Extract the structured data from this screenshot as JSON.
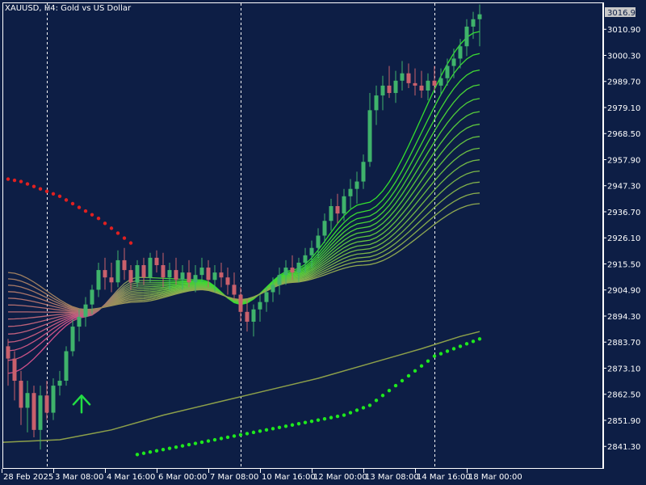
{
  "window": {
    "title": "XAUUSD, H4:  Gold vs US Dollar",
    "current_price": "3016.94"
  },
  "colors": {
    "background": "#0d1e45",
    "axis": "#ffffff",
    "grid_line": "#ffffff",
    "candle_up": "#3fb36b",
    "candle_down": "#c9606c",
    "sar_down": "#e02020",
    "sar_up": "#1ee81e",
    "arrow": "#22dd44",
    "slow_ma": "#8da04a",
    "price_tag_bg": "#c8c8c8"
  },
  "icons": {
    "signal_arrow": "up-arrow-icon"
  },
  "chart_data": {
    "type": "candlestick",
    "symbol": "XAUUSD",
    "timeframe": "H4",
    "y_ticks": [
      3010.9,
      3000.3,
      2989.7,
      2979.1,
      2968.5,
      2957.9,
      2947.3,
      2936.7,
      2926.1,
      2915.5,
      2904.9,
      2894.3,
      2883.7,
      2873.1,
      2862.5,
      2851.9,
      2841.3
    ],
    "y_tick_labels": [
      "3010.90",
      "3000.30",
      "2989.70",
      "2979.10",
      "2968.50",
      "2957.90",
      "2947.30",
      "2936.70",
      "2926.10",
      "2915.50",
      "2904.90",
      "2894.30",
      "2883.70",
      "2873.10",
      "2862.50",
      "2851.90",
      "2841.30"
    ],
    "ylim": [
      2832.5,
      3021.5
    ],
    "x_labels": [
      "28 Feb 2025",
      "3 Mar 08:00",
      "4 Mar 16:00",
      "6 Mar 00:00",
      "7 Mar 08:00",
      "10 Mar 16:00",
      "12 Mar 00:00",
      "13 Mar 08:00",
      "14 Mar 16:00",
      "18 Mar 00:00"
    ],
    "x_label_bars": [
      0,
      8,
      16,
      24,
      32,
      40,
      48,
      56,
      64,
      72
    ],
    "period_separator_bars": [
      6,
      36,
      66
    ],
    "bar_count": 74,
    "candles": [
      [
        2882,
        2885,
        2866,
        2877
      ],
      [
        2877,
        2880,
        2860,
        2868
      ],
      [
        2868,
        2872,
        2850,
        2857
      ],
      [
        2857,
        2868,
        2847,
        2863
      ],
      [
        2863,
        2866,
        2845,
        2848
      ],
      [
        2848,
        2866,
        2840,
        2862
      ],
      [
        2862,
        2868,
        2852,
        2855
      ],
      [
        2855,
        2869,
        2852,
        2866
      ],
      [
        2866,
        2872,
        2862,
        2868
      ],
      [
        2868,
        2882,
        2866,
        2880
      ],
      [
        2880,
        2893,
        2878,
        2890
      ],
      [
        2890,
        2897,
        2884,
        2894
      ],
      [
        2894,
        2902,
        2890,
        2899
      ],
      [
        2899,
        2907,
        2895,
        2905
      ],
      [
        2905,
        2916,
        2902,
        2913
      ],
      [
        2913,
        2918,
        2905,
        2910
      ],
      [
        2910,
        2916,
        2904,
        2908
      ],
      [
        2908,
        2921,
        2906,
        2917
      ],
      [
        2917,
        2922,
        2909,
        2913
      ],
      [
        2913,
        2915,
        2905,
        2908
      ],
      [
        2908,
        2917,
        2906,
        2915
      ],
      [
        2915,
        2918,
        2907,
        2910
      ],
      [
        2910,
        2920,
        2908,
        2918
      ],
      [
        2918,
        2921,
        2912,
        2915
      ],
      [
        2915,
        2920,
        2906,
        2910
      ],
      [
        2910,
        2916,
        2905,
        2913
      ],
      [
        2913,
        2918,
        2907,
        2909
      ],
      [
        2909,
        2915,
        2905,
        2912
      ],
      [
        2912,
        2917,
        2906,
        2908
      ],
      [
        2908,
        2915,
        2904,
        2911
      ],
      [
        2911,
        2918,
        2908,
        2914
      ],
      [
        2914,
        2917,
        2906,
        2909
      ],
      [
        2909,
        2915,
        2904,
        2912
      ],
      [
        2912,
        2916,
        2906,
        2910
      ],
      [
        2910,
        2914,
        2903,
        2907
      ],
      [
        2907,
        2912,
        2901,
        2903
      ],
      [
        2903,
        2906,
        2892,
        2896
      ],
      [
        2896,
        2901,
        2888,
        2892
      ],
      [
        2892,
        2899,
        2886,
        2897
      ],
      [
        2897,
        2903,
        2892,
        2900
      ],
      [
        2900,
        2906,
        2896,
        2904
      ],
      [
        2904,
        2910,
        2900,
        2907
      ],
      [
        2907,
        2914,
        2903,
        2911
      ],
      [
        2911,
        2917,
        2907,
        2914
      ],
      [
        2914,
        2919,
        2909,
        2912
      ],
      [
        2912,
        2918,
        2908,
        2916
      ],
      [
        2916,
        2922,
        2912,
        2919
      ],
      [
        2919,
        2925,
        2914,
        2922
      ],
      [
        2922,
        2930,
        2918,
        2927
      ],
      [
        2927,
        2936,
        2924,
        2933
      ],
      [
        2933,
        2942,
        2929,
        2939
      ],
      [
        2939,
        2944,
        2932,
        2936
      ],
      [
        2936,
        2946,
        2933,
        2943
      ],
      [
        2943,
        2950,
        2938,
        2946
      ],
      [
        2946,
        2953,
        2940,
        2949
      ],
      [
        2949,
        2960,
        2946,
        2957
      ],
      [
        2957,
        2985,
        2955,
        2978
      ],
      [
        2978,
        2988,
        2972,
        2984
      ],
      [
        2984,
        2992,
        2978,
        2988
      ],
      [
        2988,
        2996,
        2983,
        2985
      ],
      [
        2985,
        2994,
        2981,
        2990
      ],
      [
        2990,
        2998,
        2986,
        2993
      ],
      [
        2993,
        2997,
        2987,
        2989
      ],
      [
        2989,
        2995,
        2984,
        2988
      ],
      [
        2988,
        2994,
        2983,
        2986
      ],
      [
        2986,
        2993,
        2982,
        2990
      ],
      [
        2990,
        2996,
        2986,
        2988
      ],
      [
        2988,
        2995,
        2984,
        2991
      ],
      [
        2991,
        2999,
        2988,
        2996
      ],
      [
        2996,
        3003,
        2991,
        2999
      ],
      [
        2999,
        3007,
        2995,
        3004
      ],
      [
        3004,
        3015,
        3000,
        3012
      ],
      [
        3012,
        3018,
        3007,
        3015
      ],
      [
        3015,
        3021,
        3004,
        3017
      ]
    ],
    "sar_down": [
      [
        0,
        2950
      ],
      [
        1,
        2949.5
      ],
      [
        2,
        2949
      ],
      [
        3,
        2948
      ],
      [
        4,
        2947
      ],
      [
        5,
        2946
      ],
      [
        6,
        2945
      ],
      [
        7,
        2944
      ],
      [
        8,
        2943
      ],
      [
        9,
        2941.5
      ],
      [
        10,
        2940
      ],
      [
        11,
        2938.5
      ],
      [
        12,
        2937
      ],
      [
        13,
        2935.5
      ],
      [
        14,
        2934
      ],
      [
        15,
        2932
      ],
      [
        16,
        2930
      ],
      [
        17,
        2928
      ],
      [
        18,
        2926
      ],
      [
        19,
        2924
      ]
    ],
    "sar_up": [
      [
        20,
        2838
      ],
      [
        21,
        2838.5
      ],
      [
        22,
        2839
      ],
      [
        23,
        2839.5
      ],
      [
        24,
        2840
      ],
      [
        25,
        2840.5
      ],
      [
        26,
        2841
      ],
      [
        27,
        2841.5
      ],
      [
        28,
        2842
      ],
      [
        29,
        2842.5
      ],
      [
        30,
        2843
      ],
      [
        31,
        2843.5
      ],
      [
        32,
        2844
      ],
      [
        33,
        2844.5
      ],
      [
        34,
        2845
      ],
      [
        35,
        2845.5
      ],
      [
        36,
        2846
      ],
      [
        37,
        2846.5
      ],
      [
        38,
        2847
      ],
      [
        39,
        2847.5
      ],
      [
        40,
        2848
      ],
      [
        41,
        2848.5
      ],
      [
        42,
        2849
      ],
      [
        43,
        2849.5
      ],
      [
        44,
        2850
      ],
      [
        45,
        2850.5
      ],
      [
        46,
        2851
      ],
      [
        47,
        2851.5
      ],
      [
        48,
        2852
      ],
      [
        49,
        2852.5
      ],
      [
        50,
        2853
      ],
      [
        51,
        2853.5
      ],
      [
        52,
        2854
      ],
      [
        53,
        2855
      ],
      [
        54,
        2856
      ],
      [
        55,
        2857
      ],
      [
        56,
        2858
      ],
      [
        57,
        2860
      ],
      [
        58,
        2862
      ],
      [
        59,
        2864
      ],
      [
        60,
        2866
      ],
      [
        61,
        2868
      ],
      [
        62,
        2870
      ],
      [
        63,
        2872
      ],
      [
        64,
        2874
      ],
      [
        65,
        2876
      ],
      [
        66,
        2878
      ],
      [
        67,
        2879
      ],
      [
        68,
        2880
      ],
      [
        69,
        2881
      ],
      [
        70,
        2882
      ],
      [
        71,
        2883
      ],
      [
        72,
        2884
      ],
      [
        73,
        2885
      ]
    ],
    "slow_ma": [
      [
        0,
        2843
      ],
      [
        8,
        2844
      ],
      [
        16,
        2848
      ],
      [
        24,
        2854
      ],
      [
        32,
        2859
      ],
      [
        40,
        2864
      ],
      [
        48,
        2869
      ],
      [
        56,
        2875
      ],
      [
        64,
        2881
      ],
      [
        70,
        2886
      ],
      [
        73,
        2888
      ]
    ],
    "ma_ribbon": {
      "count": 14,
      "anchor_bars": [
        0,
        12,
        20,
        30,
        36,
        44,
        55,
        73
      ],
      "fast": [
        2871,
        2894,
        2910,
        2909,
        2899,
        2913,
        2940,
        3010
      ],
      "slow": [
        2912,
        2897,
        2900,
        2905,
        2901,
        2908,
        2915,
        2940
      ],
      "color_fast_early": "#d0508a",
      "color_slow_early": "#a08060",
      "color_fast_late": "#33e02e",
      "color_slow_late": "#8fa850"
    },
    "signals": [
      {
        "bar": 11,
        "price": 2861,
        "direction": "up"
      }
    ]
  }
}
